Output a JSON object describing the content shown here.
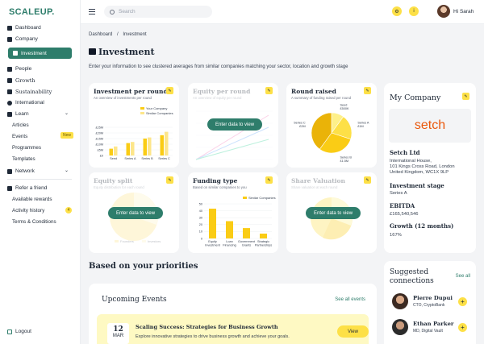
{
  "brand": "SCALEUP.",
  "nav": {
    "dashboard": "Dashboard",
    "company": "Company",
    "investment": "Investment",
    "people": "People",
    "growth": "Growth",
    "sustainability": "Sustainability",
    "international": "International",
    "learn": "Learn",
    "articles": "Articles",
    "events": "Events",
    "events_badge": "New",
    "programmes": "Programmes",
    "templates": "Templates",
    "network": "Network",
    "refer": "Refer a friend",
    "rewards": "Available rewards",
    "activity": "Activity history",
    "activity_count": "4",
    "terms": "Terms & Conditions",
    "logout": "Logout"
  },
  "header": {
    "search_placeholder": "Search",
    "greeting": "Hi Sarah"
  },
  "breadcrumb": {
    "home": "Dashboard",
    "sep": "/",
    "current": "Investment"
  },
  "page": {
    "title": "Investment",
    "intro": "Enter your information to see clustered averages from similar companies matching your sector, location and growth stage",
    "enter_label": "Enter data to view"
  },
  "cards": {
    "investment": {
      "title": "Investment per round",
      "subtitle": "An overview of investments per round",
      "legend_a": "Your Company",
      "legend_b": "Similar Companies"
    },
    "equity_round": {
      "title": "Equity per round",
      "subtitle": "An overview of equity per round"
    },
    "round_raised": {
      "title": "Round raised",
      "subtitle": "A summary of funding raised per round"
    },
    "equity_split": {
      "title": "Equity split",
      "subtitle": "Equity distribution for each round",
      "legend_a": "Founders",
      "legend_b": "Investors"
    },
    "funding_type": {
      "title": "Funding type",
      "subtitle": "Based on similar companies to you",
      "legend": "Similar Companies"
    },
    "share_valuation": {
      "title": "Share Valuation",
      "subtitle": "Share valuation at each round"
    }
  },
  "chart_data": [
    {
      "type": "bar",
      "title": "Investment per round",
      "categories": [
        "Seed",
        "Series A",
        "Series B",
        "Series C"
      ],
      "y_ticks": [
        "£0",
        "£5M",
        "£10M",
        "£15M",
        "£20M",
        "£25M"
      ],
      "ylim": [
        0,
        25
      ],
      "series": [
        {
          "name": "Your Company",
          "color": "#facc15",
          "values": [
            6,
            11,
            15,
            18
          ]
        },
        {
          "name": "Similar Companies",
          "color": "#fde68a",
          "values": [
            8,
            12,
            16,
            21
          ]
        }
      ]
    },
    {
      "type": "pie",
      "title": "Round raised",
      "slices": [
        {
          "label": "Seed",
          "value_label": "£500K",
          "value": 0.5
        },
        {
          "label": "Series A",
          "value_label": "£1M",
          "value": 1
        },
        {
          "label": "Series B",
          "value_label": "£1.5M",
          "value": 1.5
        },
        {
          "label": "Series C",
          "value_label": "£2M",
          "value": 2
        }
      ]
    },
    {
      "type": "bar",
      "title": "Funding type",
      "categories": [
        "Equity Investment",
        "Loan Financing",
        "Government Grants",
        "Strategic Partnerships"
      ],
      "y_ticks": [
        "0",
        "10",
        "20",
        "30",
        "40",
        "50"
      ],
      "ylim": [
        0,
        50
      ],
      "series": [
        {
          "name": "Similar Companies",
          "color": "#facc15",
          "values": [
            43,
            25,
            15,
            7
          ]
        }
      ]
    }
  ],
  "priorities": {
    "title": "Based on your priorities",
    "events_title": "Upcoming Events",
    "see_all_events": "See all events",
    "event": {
      "day": "12",
      "month": "MAR",
      "title": "Scaling Success: Strategies for Business Growth",
      "desc": "Explore innovative strategies to drive business growth and achieve your goals.",
      "action": "View"
    }
  },
  "my_company": {
    "title": "My Company",
    "logo_text": "setch",
    "name": "Setch Ltd",
    "address": [
      "International House,",
      "101 Kings Cross Road, London",
      "United Kingdom, WC1X 9LP"
    ],
    "stage_label": "Investment stage",
    "stage": "Series A",
    "ebitda_label": "EBITDA",
    "ebitda": "£165,540,546",
    "growth_label": "Growth (12 months)",
    "growth": "167%"
  },
  "suggested": {
    "title_1": "Suggested",
    "title_2": "connections",
    "see_all": "See all",
    "people": [
      {
        "name": "Pierre Dupui",
        "role": "CTO, CryptoBank"
      },
      {
        "name": "Ethan Parker",
        "role": "MD, Digital Vault"
      }
    ]
  },
  "colors": {
    "brand": "#2e7d6b",
    "accent": "#fde047"
  }
}
